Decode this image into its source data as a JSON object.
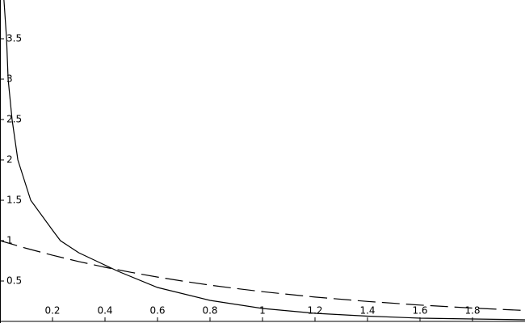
{
  "chart_data": {
    "type": "line",
    "xlim": [
      0,
      2
    ],
    "ylim": [
      -0.02,
      3.98
    ],
    "xticks": [
      0.2,
      0.4,
      0.6,
      0.8,
      1,
      1.2,
      1.4,
      1.6,
      1.8
    ],
    "yticks": [
      0.5,
      1,
      1.5,
      2,
      2.5,
      3,
      3.5
    ],
    "series": [
      {
        "color": "#000000",
        "dash": "solid",
        "x": [
          0.015,
          0.025,
          0.031,
          0.046,
          0.068,
          0.117,
          0.2,
          0.23,
          0.3,
          0.45,
          0.6,
          0.8,
          1.0,
          1.2,
          1.4,
          1.6,
          1.8,
          2.0
        ],
        "values": [
          3.98,
          3.5,
          3.0,
          2.5,
          2.0,
          1.5,
          1.13,
          1.0,
          0.85,
          0.62,
          0.42,
          0.26,
          0.16,
          0.1,
          0.065,
          0.04,
          0.03,
          0.02
        ]
      },
      {
        "color": "#000000",
        "dash": "dashed",
        "x": [
          0,
          0.1,
          0.2,
          0.3,
          0.4,
          0.5,
          0.6,
          0.7,
          0.8,
          0.9,
          1.0,
          1.2,
          1.4,
          1.6,
          1.8,
          2.0
        ],
        "values": [
          1,
          0.905,
          0.819,
          0.741,
          0.67,
          0.607,
          0.549,
          0.497,
          0.449,
          0.407,
          0.368,
          0.301,
          0.247,
          0.202,
          0.165,
          0.135
        ]
      }
    ]
  }
}
